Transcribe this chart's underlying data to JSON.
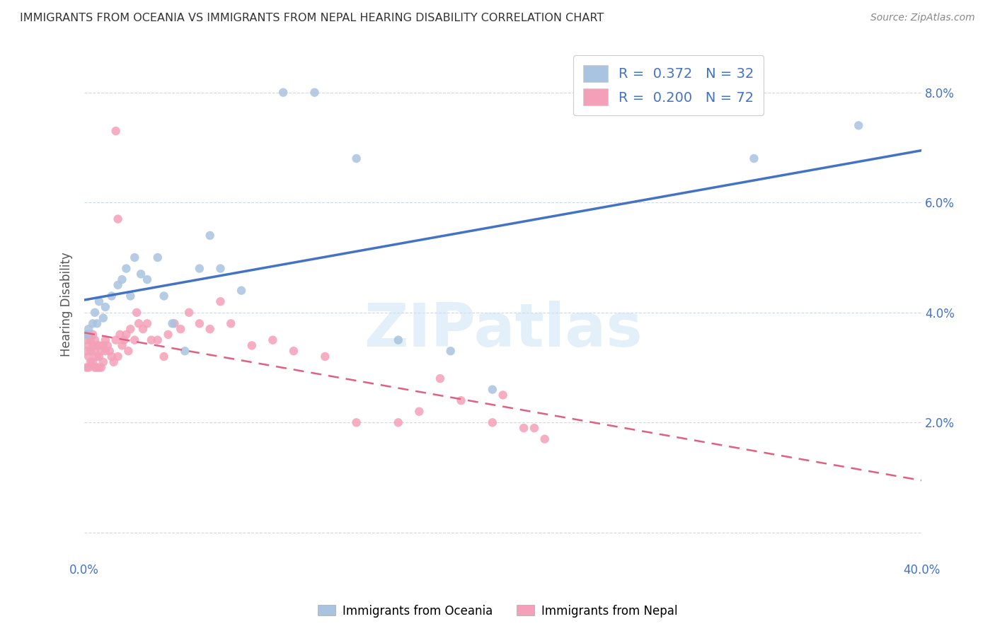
{
  "title": "IMMIGRANTS FROM OCEANIA VS IMMIGRANTS FROM NEPAL HEARING DISABILITY CORRELATION CHART",
  "source": "Source: ZipAtlas.com",
  "ylabel": "Hearing Disability",
  "xlim": [
    0.0,
    0.4
  ],
  "ylim": [
    -0.005,
    0.088
  ],
  "color_oceania": "#a8c4e0",
  "color_nepal": "#f4a0b8",
  "color_line_oceania": "#4472c4",
  "color_line_nepal": "#e06080",
  "legend_oceania_label": "R =  0.372   N = 32",
  "legend_nepal_label": "R =  0.200   N = 72",
  "legend_bottom_oceania": "Immigrants from Oceania",
  "legend_bottom_nepal": "Immigrants from Nepal",
  "oceania_x": [
    0.001,
    0.002,
    0.004,
    0.005,
    0.006,
    0.007,
    0.009,
    0.01,
    0.013,
    0.016,
    0.018,
    0.02,
    0.022,
    0.024,
    0.027,
    0.03,
    0.035,
    0.038,
    0.042,
    0.048,
    0.055,
    0.06,
    0.065,
    0.075,
    0.095,
    0.11,
    0.13,
    0.15,
    0.175,
    0.195,
    0.32,
    0.37
  ],
  "oceania_y": [
    0.036,
    0.037,
    0.038,
    0.04,
    0.038,
    0.042,
    0.039,
    0.041,
    0.043,
    0.045,
    0.046,
    0.048,
    0.043,
    0.05,
    0.047,
    0.046,
    0.05,
    0.043,
    0.038,
    0.033,
    0.048,
    0.054,
    0.048,
    0.044,
    0.08,
    0.08,
    0.068,
    0.035,
    0.033,
    0.026,
    0.068,
    0.074
  ],
  "nepal_x": [
    0.001,
    0.001,
    0.001,
    0.002,
    0.002,
    0.002,
    0.002,
    0.003,
    0.003,
    0.003,
    0.004,
    0.004,
    0.004,
    0.005,
    0.005,
    0.005,
    0.006,
    0.006,
    0.006,
    0.007,
    0.007,
    0.007,
    0.008,
    0.008,
    0.009,
    0.009,
    0.01,
    0.01,
    0.011,
    0.012,
    0.013,
    0.014,
    0.015,
    0.015,
    0.016,
    0.016,
    0.017,
    0.018,
    0.019,
    0.02,
    0.021,
    0.022,
    0.024,
    0.025,
    0.026,
    0.028,
    0.03,
    0.032,
    0.035,
    0.038,
    0.04,
    0.043,
    0.046,
    0.05,
    0.055,
    0.06,
    0.065,
    0.07,
    0.08,
    0.09,
    0.1,
    0.115,
    0.13,
    0.15,
    0.16,
    0.17,
    0.18,
    0.195,
    0.2,
    0.21,
    0.215,
    0.22
  ],
  "nepal_y": [
    0.035,
    0.033,
    0.03,
    0.036,
    0.034,
    0.032,
    0.03,
    0.035,
    0.033,
    0.031,
    0.036,
    0.034,
    0.031,
    0.035,
    0.033,
    0.03,
    0.034,
    0.032,
    0.03,
    0.034,
    0.032,
    0.03,
    0.033,
    0.03,
    0.034,
    0.031,
    0.035,
    0.033,
    0.034,
    0.033,
    0.032,
    0.031,
    0.073,
    0.035,
    0.057,
    0.032,
    0.036,
    0.034,
    0.035,
    0.036,
    0.033,
    0.037,
    0.035,
    0.04,
    0.038,
    0.037,
    0.038,
    0.035,
    0.035,
    0.032,
    0.036,
    0.038,
    0.037,
    0.04,
    0.038,
    0.037,
    0.042,
    0.038,
    0.034,
    0.035,
    0.033,
    0.032,
    0.02,
    0.02,
    0.022,
    0.028,
    0.024,
    0.02,
    0.025,
    0.019,
    0.019,
    0.017
  ]
}
